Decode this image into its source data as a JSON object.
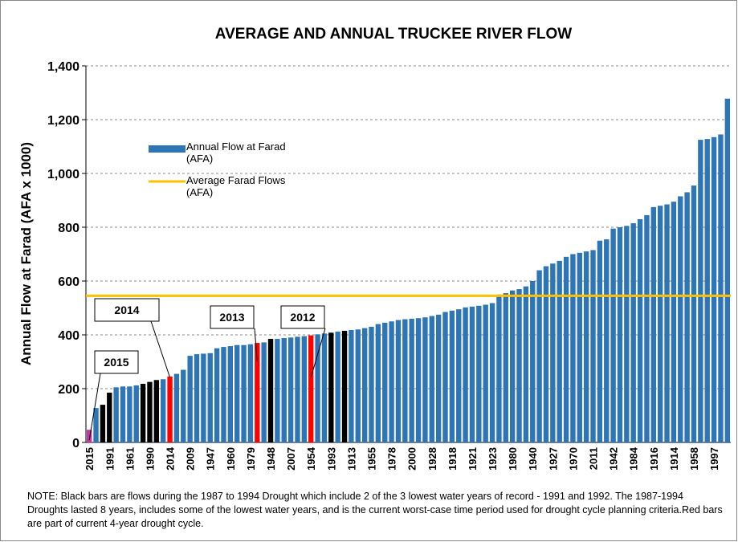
{
  "chart_data": {
    "type": "bar",
    "title": "AVERAGE AND ANNUAL  TRUCKEE RIVER FLOW",
    "y_label": "Annual Flow at Farad (AFA x 1000)",
    "note": "NOTE:  Black bars are flows during the 1987 to 1994 Drought which include 2 of the 3 lowest  water years of record - 1991 and 1992. The 1987-1994 Droughts lasted 8 years, includes some of the lowest water years, and is the current worst-case time period used for drought cycle planning criteria.Red bars are part of current 4-year drought cycle.",
    "categories": [
      "2015",
      null,
      null,
      "1991",
      null,
      null,
      "1961",
      null,
      null,
      "1990",
      null,
      null,
      "2014",
      null,
      null,
      "2009",
      null,
      null,
      "1947",
      null,
      null,
      "1960",
      null,
      null,
      "1979",
      null,
      null,
      "1948",
      null,
      null,
      "2007",
      null,
      null,
      "1954",
      null,
      null,
      "1993",
      null,
      null,
      "1913",
      null,
      null,
      "1955",
      null,
      null,
      "1978",
      null,
      null,
      "2000",
      null,
      null,
      "1928",
      null,
      null,
      "1918",
      null,
      null,
      "1921",
      null,
      null,
      "1923",
      null,
      null,
      "1980",
      null,
      null,
      "1940",
      null,
      null,
      "1927",
      null,
      null,
      "1970",
      null,
      null,
      "2011",
      null,
      null,
      "1942",
      null,
      null,
      "1984",
      null,
      null,
      "1916",
      null,
      null,
      "1914",
      null,
      null,
      "1958",
      null,
      null,
      "1997",
      null,
      null
    ],
    "series": [
      {
        "name": "Annual Flow at Farad (AFA)",
        "color": "#2e75b6",
        "values": [
          47,
          128,
          140,
          185,
          205,
          208,
          208,
          212,
          218,
          225,
          232,
          235,
          245,
          255,
          270,
          322,
          328,
          330,
          332,
          350,
          355,
          358,
          362,
          362,
          365,
          370,
          372,
          385,
          385,
          388,
          390,
          393,
          395,
          398,
          402,
          405,
          408,
          412,
          415,
          418,
          420,
          425,
          430,
          440,
          445,
          450,
          455,
          458,
          460,
          462,
          465,
          470,
          475,
          485,
          490,
          495,
          502,
          505,
          508,
          512,
          518,
          550,
          555,
          565,
          570,
          580,
          600,
          640,
          655,
          665,
          675,
          690,
          700,
          705,
          710,
          715,
          750,
          755,
          795,
          800,
          805,
          815,
          830,
          845,
          875,
          880,
          885,
          895,
          915,
          930,
          955,
          1125,
          1128,
          1135,
          1145,
          1278
        ],
        "colors": [
          "#c0399f",
          "#2e75b6",
          "#000000",
          "#000000",
          "#2e75b6",
          "#2e75b6",
          "#2e75b6",
          "#2e75b6",
          "#000000",
          "#000000",
          "#000000",
          "#2e75b6",
          "#ff0000",
          "#2e75b6",
          "#2e75b6",
          "#2e75b6",
          "#2e75b6",
          "#2e75b6",
          "#2e75b6",
          "#2e75b6",
          "#2e75b6",
          "#2e75b6",
          "#2e75b6",
          "#2e75b6",
          "#2e75b6",
          "#ff0000",
          "#2e75b6",
          "#000000",
          "#2e75b6",
          "#2e75b6",
          "#2e75b6",
          "#2e75b6",
          "#2e75b6",
          "#ff0000",
          "#2e75b6",
          "#2e75b6",
          "#000000",
          "#2e75b6",
          "#000000",
          "#2e75b6",
          "#2e75b6",
          "#2e75b6",
          "#2e75b6",
          "#2e75b6",
          "#2e75b6",
          "#2e75b6",
          "#2e75b6",
          "#2e75b6",
          "#2e75b6",
          "#2e75b6",
          "#2e75b6",
          "#2e75b6",
          "#2e75b6",
          "#2e75b6",
          "#2e75b6",
          "#2e75b6",
          "#2e75b6",
          "#2e75b6",
          "#2e75b6",
          "#2e75b6",
          "#2e75b6",
          "#2e75b6",
          "#2e75b6",
          "#2e75b6",
          "#2e75b6",
          "#2e75b6",
          "#2e75b6",
          "#2e75b6",
          "#2e75b6",
          "#2e75b6",
          "#2e75b6",
          "#2e75b6",
          "#2e75b6",
          "#2e75b6",
          "#2e75b6",
          "#2e75b6",
          "#2e75b6",
          "#2e75b6",
          "#2e75b6",
          "#2e75b6",
          "#2e75b6",
          "#2e75b6",
          "#2e75b6",
          "#2e75b6",
          "#2e75b6",
          "#2e75b6",
          "#2e75b6",
          "#2e75b6",
          "#2e75b6",
          "#2e75b6",
          "#2e75b6",
          "#2e75b6",
          "#2e75b6",
          "#2e75b6",
          "#2e75b6",
          "#2e75b6"
        ]
      },
      {
        "name": "Average Farad Flows (AFA)",
        "color": "#ffc000",
        "value": 545
      }
    ],
    "annotations": [
      "2015",
      "2014",
      "2013",
      "2012"
    ],
    "ylim": [
      0,
      1400
    ],
    "yticks": [
      0,
      200,
      400,
      600,
      800,
      {
        "value": 1000,
        "label": "1,000"
      },
      {
        "value": 1200,
        "label": "1,200"
      },
      {
        "value": 1400,
        "label": "1,400"
      }
    ],
    "grid": true
  }
}
